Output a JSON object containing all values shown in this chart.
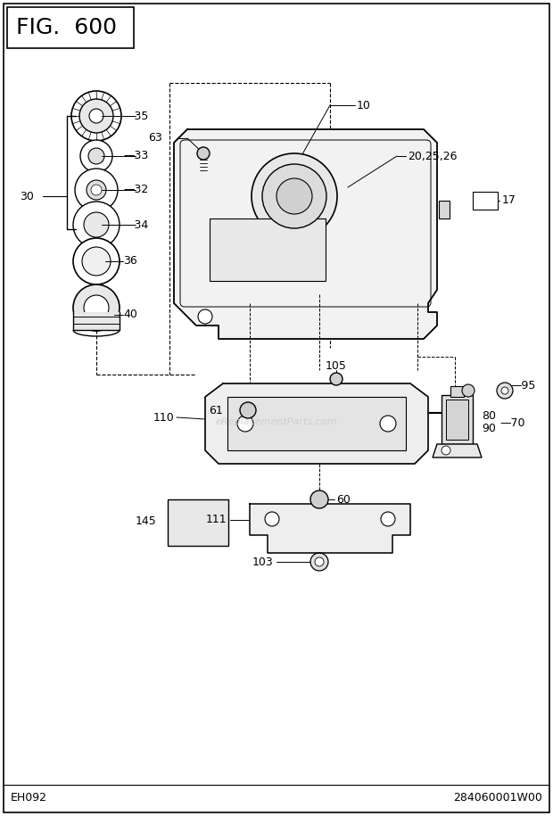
{
  "title": "FIG.  600",
  "bottom_left": "EH092",
  "bottom_right": "284060001W00",
  "bg_color": "#ffffff",
  "line_color": "#000000",
  "watermark": "eReplacementParts.com",
  "fig_width": 620,
  "fig_height": 915
}
